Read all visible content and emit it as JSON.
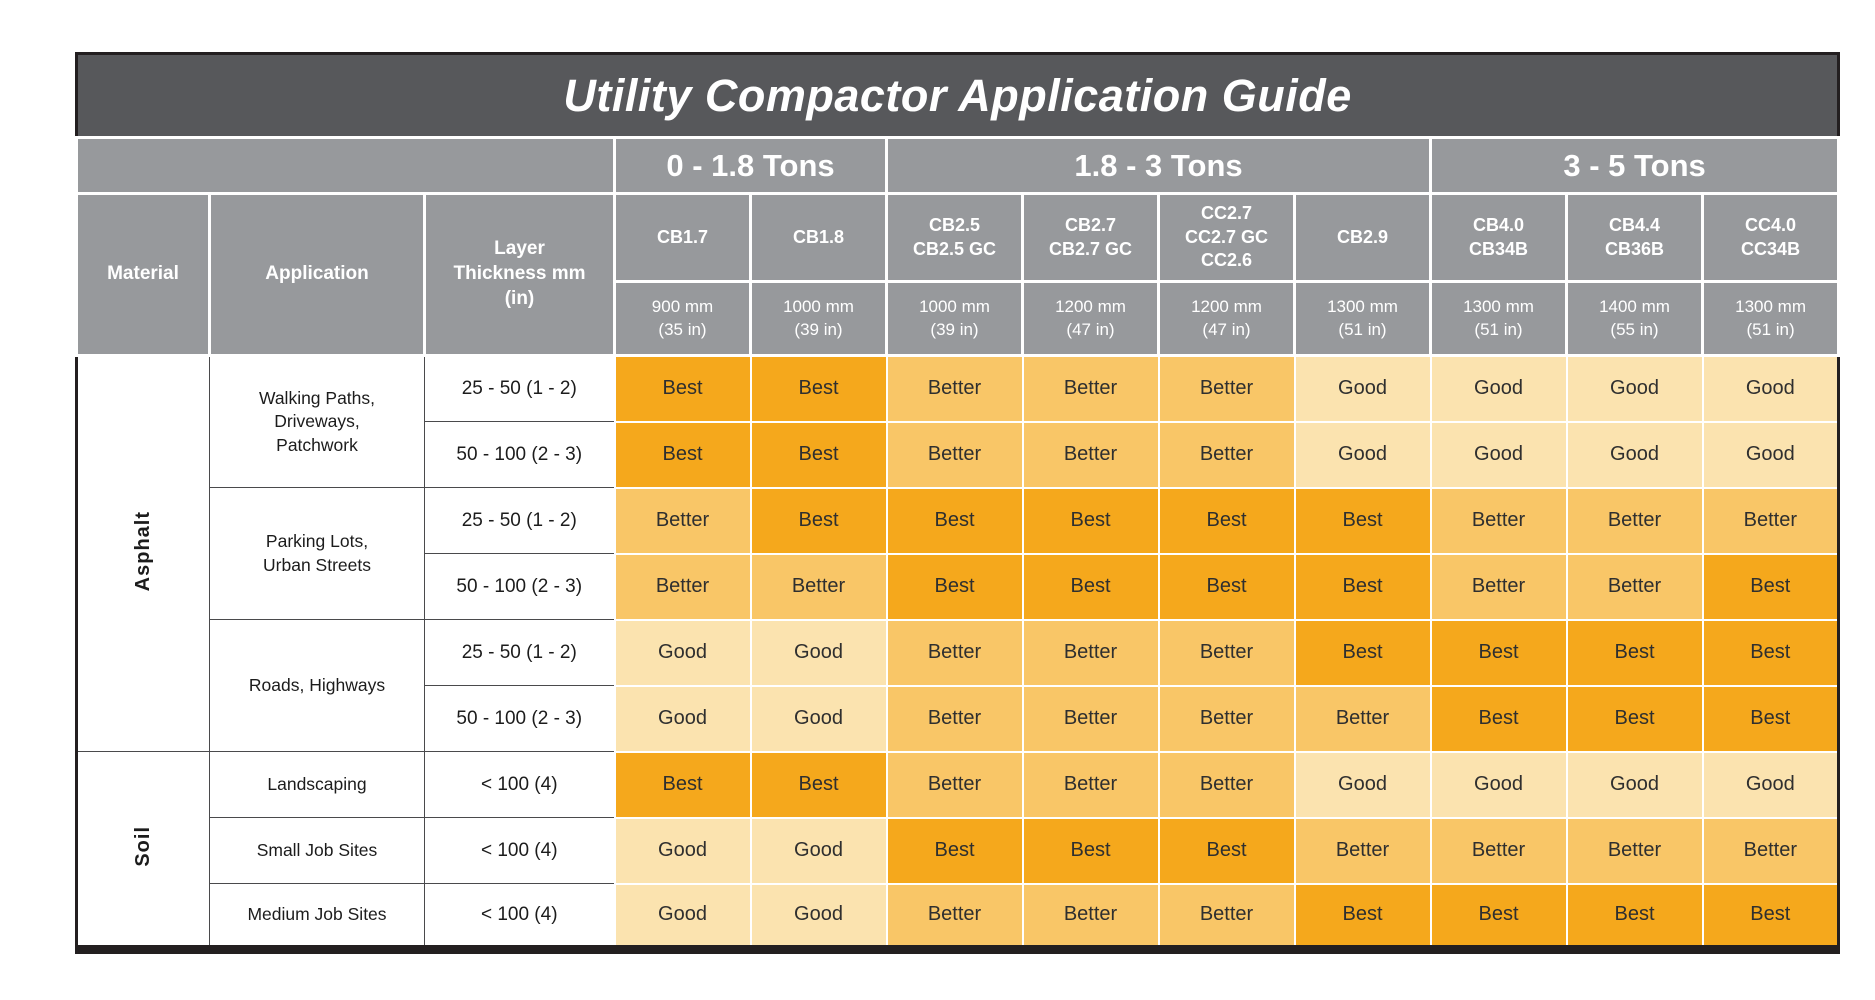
{
  "title": "Utility Compactor Application Guide",
  "colors": {
    "title_bg": "#57585B",
    "header_bg": "#97999C",
    "best": "#F5A81C",
    "better": "#F9C667",
    "good": "#FBE3AF",
    "border_dark": "#231F20",
    "cell_text": "#2F2F2F"
  },
  "rating_levels": [
    "Best",
    "Better",
    "Good"
  ],
  "chart_data": {
    "type": "table",
    "title": "Utility Compactor Application Guide",
    "tonnage_groups": [
      {
        "label": "0 - 1.8 Tons",
        "span": 2
      },
      {
        "label": "1.8 - 3 Tons",
        "span": 4
      },
      {
        "label": "3 - 5 Tons",
        "span": 3
      }
    ],
    "corner_headers": {
      "material": "Material",
      "application": "Application",
      "layer_lines": [
        "Layer",
        "Thickness mm",
        "(in)"
      ]
    },
    "models": [
      {
        "lines": [
          "CB1.7"
        ],
        "width_lines": [
          "900 mm",
          "(35 in)"
        ]
      },
      {
        "lines": [
          "CB1.8"
        ],
        "width_lines": [
          "1000 mm",
          "(39 in)"
        ]
      },
      {
        "lines": [
          "CB2.5",
          "CB2.5 GC"
        ],
        "width_lines": [
          "1000 mm",
          "(39 in)"
        ]
      },
      {
        "lines": [
          "CB2.7",
          "CB2.7 GC"
        ],
        "width_lines": [
          "1200 mm",
          "(47 in)"
        ]
      },
      {
        "lines": [
          "CC2.7",
          "CC2.7 GC",
          "CC2.6"
        ],
        "width_lines": [
          "1200 mm",
          "(47 in)"
        ]
      },
      {
        "lines": [
          "CB2.9"
        ],
        "width_lines": [
          "1300 mm",
          "(51 in)"
        ]
      },
      {
        "lines": [
          "CB4.0",
          "CB34B"
        ],
        "width_lines": [
          "1300 mm",
          "(51 in)"
        ]
      },
      {
        "lines": [
          "CB4.4",
          "CB36B"
        ],
        "width_lines": [
          "1400 mm",
          "(55 in)"
        ]
      },
      {
        "lines": [
          "CC4.0",
          "CC34B"
        ],
        "width_lines": [
          "1300 mm",
          "(51 in)"
        ]
      }
    ],
    "materials": [
      {
        "name": "Asphalt",
        "applications": [
          {
            "name": "Walking Paths, Driveways, Patchwork",
            "rows": [
              {
                "thickness": "25 - 50 (1 - 2)",
                "ratings": [
                  "Best",
                  "Best",
                  "Better",
                  "Better",
                  "Better",
                  "Good",
                  "Good",
                  "Good",
                  "Good"
                ]
              },
              {
                "thickness": "50 - 100 (2 - 3)",
                "ratings": [
                  "Best",
                  "Best",
                  "Better",
                  "Better",
                  "Better",
                  "Good",
                  "Good",
                  "Good",
                  "Good"
                ]
              }
            ]
          },
          {
            "name": "Parking Lots, Urban Streets",
            "rows": [
              {
                "thickness": "25 - 50 (1 - 2)",
                "ratings": [
                  "Better",
                  "Best",
                  "Best",
                  "Best",
                  "Best",
                  "Best",
                  "Better",
                  "Better",
                  "Better"
                ]
              },
              {
                "thickness": "50 - 100 (2 - 3)",
                "ratings": [
                  "Better",
                  "Better",
                  "Best",
                  "Best",
                  "Best",
                  "Best",
                  "Better",
                  "Better",
                  "Best"
                ]
              }
            ]
          },
          {
            "name": "Roads, Highways",
            "rows": [
              {
                "thickness": "25 - 50 (1 - 2)",
                "ratings": [
                  "Good",
                  "Good",
                  "Better",
                  "Better",
                  "Better",
                  "Best",
                  "Best",
                  "Best",
                  "Best"
                ]
              },
              {
                "thickness": "50 - 100 (2 - 3)",
                "ratings": [
                  "Good",
                  "Good",
                  "Better",
                  "Better",
                  "Better",
                  "Better",
                  "Best",
                  "Best",
                  "Best"
                ]
              }
            ]
          }
        ]
      },
      {
        "name": "Soil",
        "applications": [
          {
            "name": "Landscaping",
            "rows": [
              {
                "thickness": "< 100 (4)",
                "ratings": [
                  "Best",
                  "Best",
                  "Better",
                  "Better",
                  "Better",
                  "Good",
                  "Good",
                  "Good",
                  "Good"
                ]
              }
            ]
          },
          {
            "name": "Small Job Sites",
            "rows": [
              {
                "thickness": "< 100 (4)",
                "ratings": [
                  "Good",
                  "Good",
                  "Best",
                  "Best",
                  "Best",
                  "Better",
                  "Better",
                  "Better",
                  "Better"
                ]
              }
            ]
          },
          {
            "name": "Medium Job Sites",
            "rows": [
              {
                "thickness": "< 100 (4)",
                "ratings": [
                  "Good",
                  "Good",
                  "Better",
                  "Better",
                  "Better",
                  "Best",
                  "Best",
                  "Best",
                  "Best"
                ]
              }
            ]
          }
        ]
      }
    ]
  }
}
